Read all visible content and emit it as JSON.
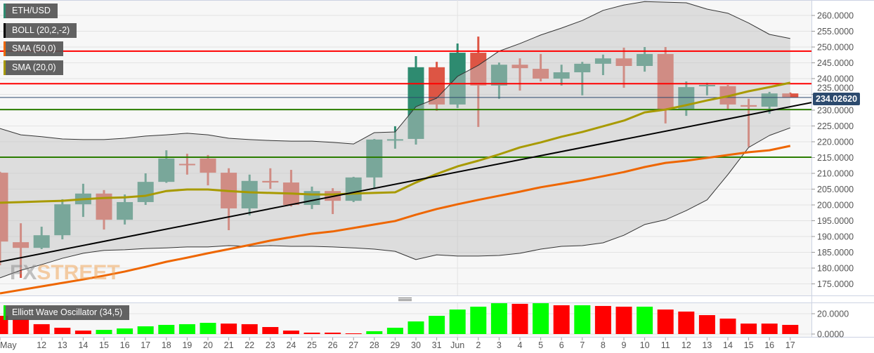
{
  "legend": [
    {
      "label": "ETH/USD",
      "color": "#2e8b70"
    },
    {
      "label": "BOLL (20,2,-2)",
      "color": "#000000"
    },
    {
      "label": "SMA (50,0)",
      "color": "#ee6600"
    },
    {
      "label": "SMA (20,0)",
      "color": "#a89a00"
    }
  ],
  "oscillator_label": {
    "label": "Elliott Wave Oscillator (34,5)",
    "color": "#00ee00"
  },
  "current_price": "234.02620",
  "logo": {
    "fx": "FX",
    "street": "STREET"
  },
  "colors": {
    "up": "#2e8b70",
    "down": "#dd5544",
    "band": "#c4c4c4",
    "resistance": "#ff0000",
    "support": "#2a7d00",
    "trend": "#000000",
    "ewo_up": "#00ff00",
    "ewo_down": "#ff0000",
    "price_line": "#2c4a6e"
  },
  "chart_data": {
    "type": "candlestick",
    "dates": [
      "May 10",
      "May 11",
      "May 12",
      "May 13",
      "May 14",
      "May 15",
      "May 16",
      "May 17",
      "May 18",
      "May 19",
      "May 20",
      "May 21",
      "May 22",
      "May 23",
      "May 24",
      "May 25",
      "May 26",
      "May 27",
      "May 28",
      "May 29",
      "May 30",
      "May 31",
      "Jun 1",
      "Jun 2",
      "Jun 3",
      "Jun 4",
      "Jun 5",
      "Jun 6",
      "Jun 7",
      "Jun 8",
      "Jun 9",
      "Jun 10",
      "Jun 11",
      "Jun 12",
      "Jun 13",
      "Jun 14",
      "Jun 15",
      "Jun 16",
      "Jun 17"
    ],
    "x_tick_labels": [
      "May",
      "",
      "12",
      "13",
      "14",
      "15",
      "16",
      "17",
      "18",
      "19",
      "20",
      "21",
      "22",
      "23",
      "24",
      "25",
      "26",
      "27",
      "28",
      "29",
      "30",
      "31",
      "Jun",
      "2",
      "3",
      "4",
      "5",
      "6",
      "7",
      "8",
      "9",
      "10",
      "11",
      "12",
      "13",
      "14",
      "15",
      "16",
      "17"
    ],
    "open": [
      210.2,
      188.2,
      186.4,
      190.4,
      200.2,
      203.6,
      195.3,
      200.9,
      207.3,
      213.0,
      214.7,
      210.2,
      198.9,
      207.6,
      207.1,
      200.0,
      204.4,
      201.3,
      208.7,
      220.5,
      220.9,
      243.6,
      231.8,
      248.2,
      237.8,
      244.4,
      243.1,
      240.0,
      242.0,
      244.7,
      246.4,
      244.0,
      247.8,
      230.4,
      237.6,
      237.6,
      231.6,
      231.1,
      235.3
    ],
    "high": [
      210.5,
      194.2,
      193.1,
      201.8,
      206.7,
      204.7,
      203.3,
      210.0,
      217.3,
      216.2,
      215.8,
      211.6,
      209.6,
      211.6,
      211.1,
      205.8,
      205.3,
      208.9,
      220.9,
      224.9,
      247.1,
      245.3,
      251.1,
      253.3,
      245.1,
      246.4,
      247.8,
      244.4,
      245.3,
      247.6,
      249.8,
      250.0,
      250.0,
      239.1,
      238.7,
      238.0,
      233.6,
      235.8,
      235.6
    ],
    "low": [
      180.9,
      176.9,
      186.0,
      189.1,
      196.2,
      192.2,
      193.8,
      200.0,
      207.0,
      209.6,
      206.2,
      192.0,
      196.7,
      205.1,
      199.5,
      198.7,
      197.1,
      200.9,
      205.3,
      217.8,
      219.1,
      229.8,
      230.7,
      224.7,
      233.6,
      236.2,
      239.1,
      237.8,
      234.7,
      241.1,
      237.1,
      242.2,
      225.8,
      228.2,
      234.7,
      230.0,
      218.4,
      228.9,
      234.0
    ],
    "close": [
      188.4,
      186.4,
      190.4,
      200.2,
      203.6,
      195.3,
      200.9,
      207.3,
      214.7,
      212.7,
      210.2,
      198.9,
      207.6,
      207.1,
      200.0,
      204.4,
      201.3,
      208.7,
      220.7,
      220.8,
      243.6,
      231.8,
      248.2,
      237.8,
      244.4,
      243.3,
      240.0,
      242.0,
      244.7,
      246.4,
      244.0,
      247.8,
      230.4,
      237.3,
      238.0,
      231.8,
      231.1,
      235.3,
      234.03
    ],
    "bollinger_upper": [
      224.2,
      222.2,
      221.6,
      220.9,
      220.7,
      220.7,
      221.1,
      221.8,
      222.2,
      222.7,
      222.2,
      221.1,
      220.7,
      220.4,
      220.2,
      220.2,
      219.8,
      219.3,
      222.9,
      223.1,
      231.1,
      233.8,
      240.7,
      244.2,
      248.7,
      251.1,
      253.8,
      256.0,
      258.4,
      261.6,
      263.3,
      264.4,
      264.2,
      264.0,
      262.0,
      260.7,
      257.6,
      254.0,
      252.7
    ],
    "bollinger_lower": [
      176.9,
      179.3,
      181.1,
      183.1,
      184.7,
      185.6,
      185.8,
      186.2,
      186.4,
      186.7,
      186.7,
      187.1,
      186.9,
      187.1,
      186.9,
      186.9,
      186.7,
      186.4,
      186.0,
      185.3,
      182.7,
      184.2,
      183.8,
      183.8,
      184.0,
      184.7,
      186.0,
      186.9,
      187.1,
      188.0,
      190.4,
      193.8,
      195.3,
      198.2,
      201.6,
      209.6,
      218.2,
      222.0,
      224.4
    ],
    "sma20": [
      200.7,
      200.9,
      201.1,
      201.3,
      201.8,
      202.2,
      202.4,
      202.9,
      204.4,
      204.9,
      204.9,
      204.4,
      204.0,
      203.8,
      203.6,
      203.3,
      203.3,
      203.6,
      203.8,
      204.0,
      207.1,
      209.8,
      212.2,
      214.0,
      216.0,
      218.2,
      219.8,
      221.6,
      223.1,
      224.9,
      226.7,
      229.3,
      230.2,
      231.6,
      233.1,
      234.4,
      236.0,
      237.3,
      238.7
    ],
    "sma50": [
      172.0,
      173.1,
      174.2,
      175.3,
      176.4,
      177.6,
      178.9,
      180.4,
      182.0,
      183.3,
      184.7,
      186.0,
      187.3,
      188.7,
      189.8,
      190.9,
      191.6,
      192.7,
      193.8,
      194.9,
      196.9,
      198.7,
      200.2,
      201.6,
      202.9,
      204.2,
      205.6,
      206.7,
      207.8,
      209.1,
      210.4,
      212.0,
      213.3,
      214.0,
      214.9,
      215.8,
      216.7,
      217.3,
      218.7
    ],
    "horizontal_levels": [
      {
        "price": 248.7,
        "kind": "resistance"
      },
      {
        "price": 238.4,
        "kind": "resistance"
      },
      {
        "price": 230.2,
        "kind": "support"
      },
      {
        "price": 215.1,
        "kind": "support"
      }
    ],
    "trendline": [
      {
        "date": "May 10",
        "price": 182.0
      },
      {
        "date": "Jun 17",
        "price": 231.1
      }
    ],
    "y_ticks": [
      260,
      255,
      250,
      245,
      240,
      235,
      230,
      225,
      220,
      215,
      210,
      205,
      200,
      195,
      190,
      185,
      180,
      175
    ],
    "y_tick_labels": [
      "260.0000",
      "255.0000",
      "250.0000",
      "245.0000",
      "240.0000",
      "235.0000",
      "230.0000",
      "225.0000",
      "220.0000",
      "215.0000",
      "210.0000",
      "205.0000",
      "200.0000",
      "195.0000",
      "190.0000",
      "185.0000",
      "180.0000",
      "175.0000"
    ],
    "ylim": [
      170,
      265
    ],
    "grid": true,
    "ewo": {
      "values": [
        17.9,
        14.5,
        9.7,
        6.2,
        3.4,
        4.1,
        5.5,
        7.6,
        9.0,
        9.7,
        11.0,
        10.3,
        9.7,
        6.9,
        3.4,
        1.4,
        1.4,
        0.7,
        2.8,
        6.2,
        12.4,
        17.9,
        24.1,
        26.9,
        30.3,
        29.7,
        30.3,
        28.3,
        28.3,
        27.6,
        26.9,
        26.9,
        24.1,
        22.1,
        18.6,
        15.2,
        10.3,
        10.3,
        9.0
      ],
      "direction": [
        "down",
        "down",
        "down",
        "down",
        "down",
        "up",
        "up",
        "up",
        "up",
        "up",
        "up",
        "down",
        "down",
        "down",
        "down",
        "down",
        "down",
        "down",
        "up",
        "up",
        "up",
        "up",
        "up",
        "up",
        "up",
        "down",
        "up",
        "down",
        "up",
        "down",
        "down",
        "up",
        "down",
        "down",
        "down",
        "down",
        "down",
        "down",
        "down"
      ],
      "y_ticks": [
        20,
        0
      ],
      "y_tick_labels": [
        "20.0000",
        "0.0000"
      ]
    }
  }
}
